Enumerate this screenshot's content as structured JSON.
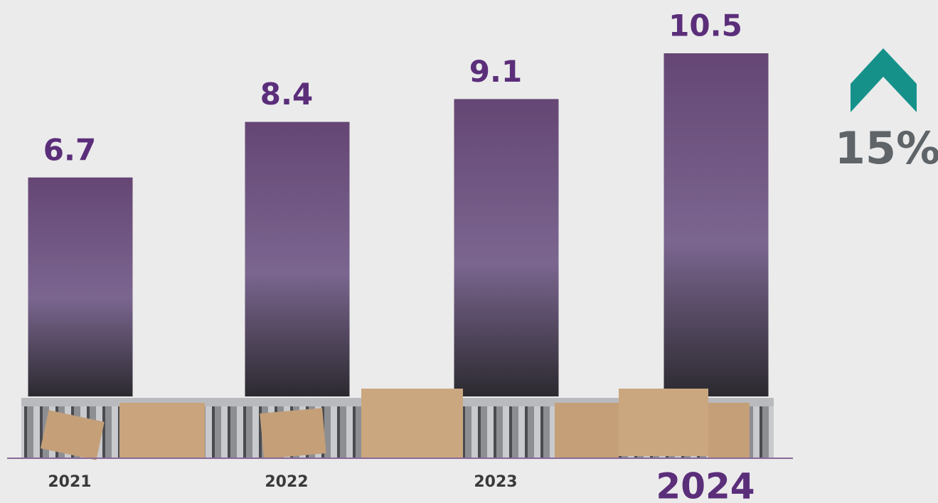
{
  "chart_data": {
    "type": "bar",
    "categories": [
      "2021",
      "2022",
      "2023",
      "2024"
    ],
    "values": [
      6.7,
      8.4,
      9.1,
      10.5
    ],
    "color": "#5e416f",
    "growth": "15%"
  }
}
